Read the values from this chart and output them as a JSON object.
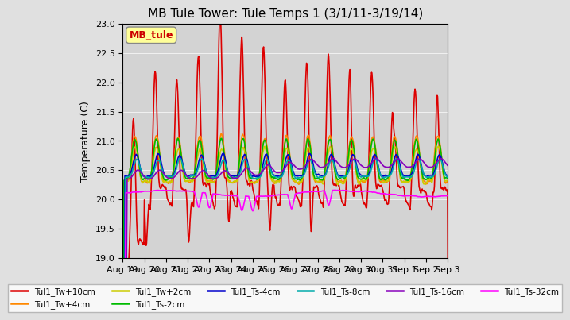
{
  "title": "MB Tule Tower: Tule Temps 1 (3/1/11-3/19/14)",
  "ylabel": "Temperature (C)",
  "ylim": [
    19.0,
    23.0
  ],
  "yticks": [
    19.0,
    19.5,
    20.0,
    20.5,
    21.0,
    21.5,
    22.0,
    22.5,
    23.0
  ],
  "background_color": "#e0e0e0",
  "plot_bg_color": "#d3d3d3",
  "series": [
    {
      "label": "Tul1_Tw+10cm",
      "color": "#dd0000",
      "lw": 1.2
    },
    {
      "label": "Tul1_Tw+4cm",
      "color": "#ff8800",
      "lw": 1.2
    },
    {
      "label": "Tul1_Tw+2cm",
      "color": "#cccc00",
      "lw": 1.2
    },
    {
      "label": "Tul1_Ts-2cm",
      "color": "#00bb00",
      "lw": 1.2
    },
    {
      "label": "Tul1_Ts-4cm",
      "color": "#0000cc",
      "lw": 1.2
    },
    {
      "label": "Tul1_Ts-8cm",
      "color": "#00aaaa",
      "lw": 1.2
    },
    {
      "label": "Tul1_Ts-16cm",
      "color": "#8800bb",
      "lw": 1.2
    },
    {
      "label": "Tul1_Ts-32cm",
      "color": "#ff00ff",
      "lw": 1.2
    }
  ],
  "x_tick_labels": [
    "Aug 19",
    "Aug 20",
    "Aug 21",
    "Aug 22",
    "Aug 23",
    "Aug 24",
    "Aug 25",
    "Aug 26",
    "Aug 27",
    "Aug 28",
    "Aug 29",
    "Aug 30",
    "Aug 31",
    "Sep 1",
    "Sep 2",
    "Sep 3"
  ],
  "legend_box_color": "#ffff99",
  "legend_box_label": "MB_tule",
  "legend_box_text_color": "#cc0000"
}
